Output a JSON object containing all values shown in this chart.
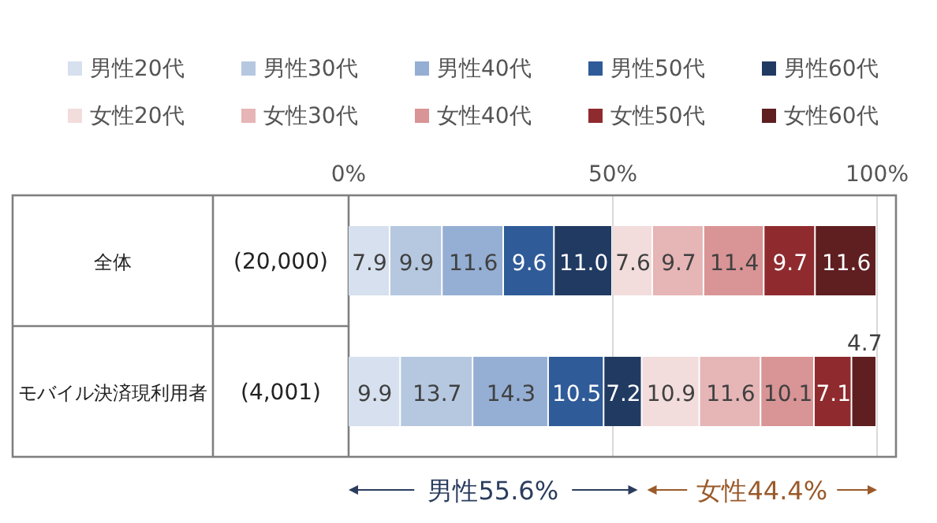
{
  "chart_data": {
    "type": "bar",
    "orientation": "horizontal",
    "stacked": true,
    "data_labels": true,
    "grid": "x",
    "legend": "top",
    "categories": [
      "全体",
      "モバイル決済現利用者"
    ],
    "xlim": [
      0,
      100
    ],
    "xticks": [
      {
        "value": 0,
        "label": "0%"
      },
      {
        "value": 50,
        "label": "50%"
      },
      {
        "value": 100,
        "label": "100%"
      }
    ],
    "series": [
      {
        "name": "男性20代",
        "color": "#d6e0ee",
        "values": [
          7.9,
          9.9
        ]
      },
      {
        "name": "男性30代",
        "color": "#b5c8e0",
        "values": [
          9.9,
          13.7
        ]
      },
      {
        "name": "男性40代",
        "color": "#95aed3",
        "values": [
          11.6,
          14.3
        ]
      },
      {
        "name": "男性50代",
        "color": "#2f5b98",
        "values": [
          9.6,
          10.5
        ]
      },
      {
        "name": "男性60代",
        "color": "#213a62",
        "values": [
          11.0,
          7.2
        ],
        "value_labels": [
          "11.0",
          "7.2"
        ]
      },
      {
        "name": "女性20代",
        "color": "#f2dcdc",
        "values": [
          7.6,
          10.9
        ]
      },
      {
        "name": "女性30代",
        "color": "#e6b5b6",
        "values": [
          9.7,
          11.6
        ]
      },
      {
        "name": "女性40代",
        "color": "#d99495",
        "values": [
          11.4,
          10.1
        ]
      },
      {
        "name": "女性50代",
        "color": "#8f2b2e",
        "values": [
          9.7,
          7.1
        ]
      },
      {
        "name": "女性60代",
        "color": "#5f1e20",
        "values": [
          11.6,
          4.7
        ]
      }
    ],
    "annotations": [
      "(20,000)",
      "(4,001)",
      "男性55.6%",
      "女性44.4%"
    ]
  }
}
